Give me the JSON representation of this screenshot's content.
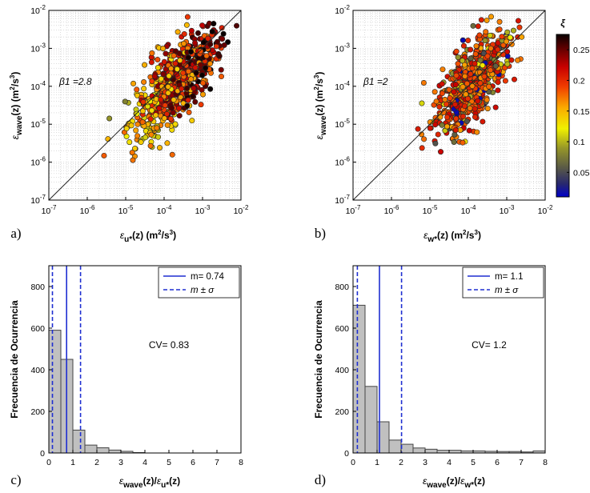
{
  "chart_data": [
    {
      "type": "scatter",
      "panel": "a)",
      "xlabel": "ε_u*(z)  (m²/s³)",
      "ylabel": "ε_wave(z)  (m²/s³)",
      "xscale": "log",
      "yscale": "log",
      "xlim": [
        1e-07,
        0.01
      ],
      "ylim": [
        1e-07,
        0.01
      ],
      "xticks": [
        "10-7",
        "10-6",
        "10-5",
        "10-4",
        "10-3",
        "10-2"
      ],
      "yticks": [
        "10-7",
        "10-6",
        "10-5",
        "10-4",
        "10-3",
        "10-2"
      ],
      "annotation": "β1 =2.8",
      "reference_line": "1:1",
      "grid": "dotted",
      "cloud": {
        "center_log_x": -3.7,
        "center_log_y": -3.9,
        "spread_x": 0.55,
        "spread_y": 0.75,
        "n": 700
      }
    },
    {
      "type": "scatter",
      "panel": "b)",
      "xlabel": "ε_w*(z)  (m²/s³)",
      "ylabel": "ε_wave(z)  (m²/s³)",
      "xscale": "log",
      "yscale": "log",
      "xlim": [
        1e-07,
        0.01
      ],
      "ylim": [
        1e-07,
        0.01
      ],
      "xticks": [
        "10-7",
        "10-6",
        "10-5",
        "10-4",
        "10-3",
        "10-2"
      ],
      "yticks": [
        "10-7",
        "10-6",
        "10-5",
        "10-4",
        "10-3",
        "10-2"
      ],
      "annotation": "β1 =2",
      "reference_line": "1:1",
      "grid": "dotted",
      "colorbar": {
        "label": "ξ",
        "range": [
          0.01,
          0.275
        ],
        "ticks": [
          "0.25",
          "0.2",
          "0.15",
          "0.1",
          "0.05"
        ],
        "tick_values": [
          0.25,
          0.2,
          0.15,
          0.1,
          0.05
        ]
      },
      "cloud": {
        "center_log_x": -3.9,
        "center_log_y": -3.9,
        "spread_x": 0.45,
        "spread_y": 0.7,
        "n": 700
      }
    },
    {
      "type": "bar",
      "panel": "c)",
      "subtype": "histogram",
      "xlabel": "ε_wave(z)/ε_u*(z)",
      "ylabel": "Frecuencia de Ocurrencia",
      "xlim": [
        0,
        8
      ],
      "ylim": [
        0,
        900
      ],
      "xticks": [
        "0",
        "1",
        "2",
        "3",
        "4",
        "5",
        "6",
        "7",
        "8"
      ],
      "yticks": [
        "0",
        "200",
        "400",
        "600",
        "800"
      ],
      "bin_width": 0.5,
      "values": [
        590,
        450,
        110,
        38,
        25,
        14,
        8,
        2,
        0,
        0,
        0,
        0,
        0,
        0,
        0,
        0
      ],
      "mean": 0.74,
      "sigma_low": 0.15,
      "sigma_high": 1.32,
      "legend": {
        "mean_label": "m= 0.74",
        "sigma_label": "m ± σ"
      },
      "annotation": "CV= 0.83"
    },
    {
      "type": "bar",
      "panel": "d)",
      "subtype": "histogram",
      "xlabel": "ε_wave(z)/ε_w*(z)",
      "ylabel": "Frecuencia de Ocurrencia",
      "xlim": [
        0,
        8
      ],
      "ylim": [
        0,
        900
      ],
      "xticks": [
        "0",
        "1",
        "2",
        "3",
        "4",
        "5",
        "6",
        "7",
        "8"
      ],
      "yticks": [
        "0",
        "200",
        "400",
        "600",
        "800"
      ],
      "bin_width": 0.5,
      "values": [
        710,
        320,
        150,
        62,
        42,
        24,
        18,
        13,
        13,
        10,
        10,
        8,
        7,
        7,
        5,
        10
      ],
      "mean": 1.1,
      "sigma_low": 0.18,
      "sigma_high": 2.02,
      "legend": {
        "mean_label": "m= 1.1",
        "sigma_label": "m ± σ"
      },
      "annotation": "CV= 1.2"
    }
  ]
}
